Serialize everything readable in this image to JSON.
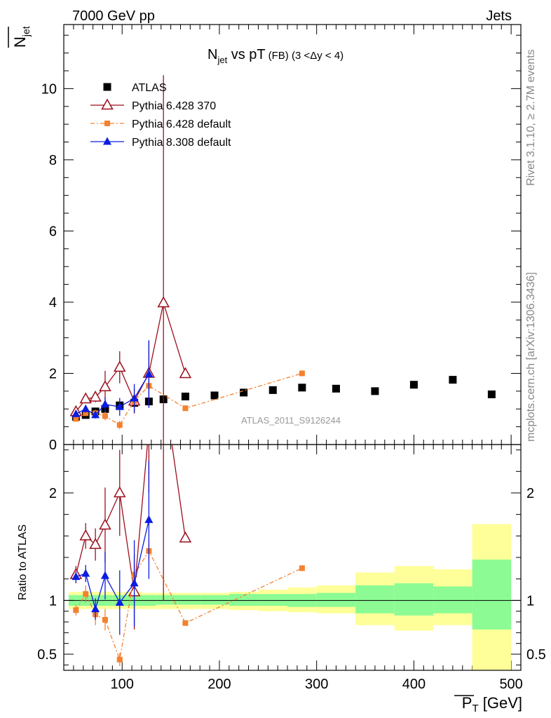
{
  "header": {
    "left": "7000 GeV pp",
    "right": "Jets"
  },
  "side_labels": {
    "rivet": "Rivet 3.1.10, ≥ 2.7M events",
    "mcplots": "mcplots.cern.ch [arXiv:1306.3436]"
  },
  "watermark": "ATLAS_2011_S9126244",
  "title": {
    "main": "N",
    "main_sub": "jet",
    "rest": " vs pT",
    "qualifier": "(FB) (3 <Δy < 4)"
  },
  "ylabel_top": {
    "main": "N",
    "sub": "jet"
  },
  "ylabel_bottom": "Ratio to ATLAS",
  "xlabel": {
    "main": "P",
    "sub": "T",
    "unit": " [GeV]"
  },
  "colors": {
    "atlas": "#000000",
    "py6_370": "#9b0f1e",
    "py6_def": "#f5802e",
    "py8_def": "#0b1de0",
    "band_inner": "#8cfb94",
    "band_outer": "#ffff99"
  },
  "chart_data": {
    "type": "scatter",
    "xlim": [
      40,
      510
    ],
    "main_ylim": [
      0,
      11.8
    ],
    "main_yticks": [
      0,
      2,
      4,
      6,
      8,
      10
    ],
    "ratio_ylim": [
      0.35,
      2.45
    ],
    "ratio_yticks": [
      0.5,
      1,
      2
    ],
    "xticks": [
      100,
      200,
      300,
      400,
      500
    ],
    "legend_placement": "top-left",
    "series": [
      {
        "name": "ATLAS",
        "style": "atlas",
        "x": [
          52.5,
          62.5,
          72.5,
          82.5,
          97.5,
          112.5,
          127.5,
          142.5,
          165,
          195,
          225,
          255,
          285,
          320,
          360,
          400,
          440,
          480
        ],
        "y": [
          0.78,
          0.83,
          0.93,
          1.0,
          1.1,
          1.17,
          1.21,
          1.27,
          1.35,
          1.38,
          1.46,
          1.53,
          1.6,
          1.57,
          1.5,
          1.68,
          1.82,
          1.41
        ]
      },
      {
        "name": "Pythia 6.428 370",
        "style": "py6_370",
        "x": [
          52.5,
          62.5,
          72.5,
          82.5,
          97.5,
          112.5,
          127.5,
          142.5,
          165
        ],
        "y": [
          0.92,
          1.28,
          1.33,
          1.62,
          2.17,
          1.22,
          2.0,
          3.98,
          1.99
        ],
        "err": [
          0.1,
          0.12,
          0.14,
          0.45,
          0.45,
          0.35,
          0.9,
          6.4,
          0.1
        ],
        "ratio": [
          1.24,
          1.6,
          1.52,
          1.7,
          2.0,
          1.08,
          2.6,
          3.0,
          1.58
        ],
        "ratio_err": [
          0.08,
          0.12,
          0.15,
          0.35,
          0.4,
          0.35,
          0.6,
          2.0,
          0.0
        ]
      },
      {
        "name": "Pythia 6.428 default",
        "style": "py6_def",
        "x": [
          52.5,
          62.5,
          72.5,
          82.5,
          97.5,
          112.5,
          127.5,
          165,
          285
        ],
        "y": [
          0.72,
          0.88,
          0.88,
          0.8,
          0.55,
          1.22,
          1.65,
          1.02,
          2.0
        ],
        "err": [
          0.05,
          0.06,
          0.1,
          0.12,
          0.12,
          0.1,
          0.1,
          0.0,
          0.0
        ],
        "ratio": [
          0.91,
          1.06,
          0.87,
          0.82,
          0.45,
          1.24,
          1.46,
          0.79,
          1.3
        ],
        "ratio_err": [
          0.05,
          0.08,
          0.1,
          0.1,
          0.06,
          0.12,
          0.1,
          0.0,
          0.0
        ]
      },
      {
        "name": "Pythia 8.308 default",
        "style": "py8_def",
        "x": [
          52.5,
          62.5,
          72.5,
          82.5,
          97.5,
          112.5,
          127.5
        ],
        "y": [
          0.86,
          1.0,
          0.83,
          1.13,
          1.06,
          1.3,
          1.98
        ],
        "err": [
          0.06,
          0.1,
          0.1,
          0.2,
          0.25,
          0.4,
          0.95
        ],
        "ratio": [
          1.22,
          1.25,
          0.92,
          1.23,
          0.98,
          1.16,
          1.75
        ],
        "ratio_err": [
          0.05,
          0.08,
          0.1,
          0.22,
          0.3,
          0.4,
          0.55
        ]
      }
    ],
    "ratio_band": {
      "bins": [
        {
          "lo": 45,
          "hi": 60,
          "inner": [
            0.95,
            1.05
          ],
          "outer": [
            0.92,
            1.08
          ]
        },
        {
          "lo": 60,
          "hi": 70,
          "inner": [
            0.95,
            1.05
          ],
          "outer": [
            0.92,
            1.08
          ]
        },
        {
          "lo": 70,
          "hi": 80,
          "inner": [
            0.95,
            1.05
          ],
          "outer": [
            0.92,
            1.08
          ]
        },
        {
          "lo": 80,
          "hi": 90,
          "inner": [
            0.95,
            1.05
          ],
          "outer": [
            0.92,
            1.08
          ]
        },
        {
          "lo": 90,
          "hi": 105,
          "inner": [
            0.95,
            1.05
          ],
          "outer": [
            0.92,
            1.08
          ]
        },
        {
          "lo": 105,
          "hi": 120,
          "inner": [
            0.95,
            1.05
          ],
          "outer": [
            0.92,
            1.08
          ]
        },
        {
          "lo": 120,
          "hi": 135,
          "inner": [
            0.95,
            1.05
          ],
          "outer": [
            0.92,
            1.07
          ]
        },
        {
          "lo": 135,
          "hi": 150,
          "inner": [
            0.96,
            1.05
          ],
          "outer": [
            0.92,
            1.07
          ]
        },
        {
          "lo": 150,
          "hi": 180,
          "inner": [
            0.96,
            1.05
          ],
          "outer": [
            0.92,
            1.07
          ]
        },
        {
          "lo": 180,
          "hi": 210,
          "inner": [
            0.96,
            1.05
          ],
          "outer": [
            0.92,
            1.07
          ]
        },
        {
          "lo": 210,
          "hi": 240,
          "inner": [
            0.95,
            1.06
          ],
          "outer": [
            0.91,
            1.08
          ]
        },
        {
          "lo": 240,
          "hi": 270,
          "inner": [
            0.95,
            1.06
          ],
          "outer": [
            0.9,
            1.1
          ]
        },
        {
          "lo": 270,
          "hi": 300,
          "inner": [
            0.94,
            1.06
          ],
          "outer": [
            0.89,
            1.12
          ]
        },
        {
          "lo": 300,
          "hi": 340,
          "inner": [
            0.94,
            1.07
          ],
          "outer": [
            0.88,
            1.14
          ]
        },
        {
          "lo": 340,
          "hi": 380,
          "inner": [
            0.88,
            1.14
          ],
          "outer": [
            0.77,
            1.26
          ]
        },
        {
          "lo": 380,
          "hi": 420,
          "inner": [
            0.86,
            1.16
          ],
          "outer": [
            0.72,
            1.32
          ]
        },
        {
          "lo": 420,
          "hi": 460,
          "inner": [
            0.88,
            1.13
          ],
          "outer": [
            0.77,
            1.29
          ]
        },
        {
          "lo": 460,
          "hi": 500,
          "inner": [
            0.73,
            1.38
          ],
          "outer": [
            0.35,
            1.71
          ]
        }
      ]
    }
  }
}
